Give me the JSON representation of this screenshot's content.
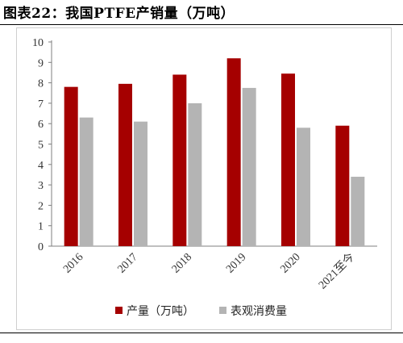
{
  "figure": {
    "title": "图表22：我国PTFE产销量（万吨）"
  },
  "chart_data": {
    "type": "bar",
    "categories": [
      "2016",
      "2017",
      "2018",
      "2019",
      "2020",
      "2021至今"
    ],
    "series": [
      {
        "name": "产量（万吨）",
        "color": "#a50000",
        "values": [
          7.8,
          7.95,
          8.4,
          9.2,
          8.45,
          5.9
        ]
      },
      {
        "name": "表观消费量",
        "color": "#b4b4b4",
        "values": [
          6.3,
          6.1,
          7.0,
          7.75,
          5.8,
          3.4
        ]
      }
    ],
    "ylim": [
      0,
      10
    ],
    "yticks": [
      "0",
      "1",
      "2",
      "3",
      "4",
      "5",
      "6",
      "7",
      "8",
      "9",
      "10"
    ],
    "xlabel": "",
    "ylabel": "",
    "grid": false,
    "legend_position": "bottom"
  }
}
